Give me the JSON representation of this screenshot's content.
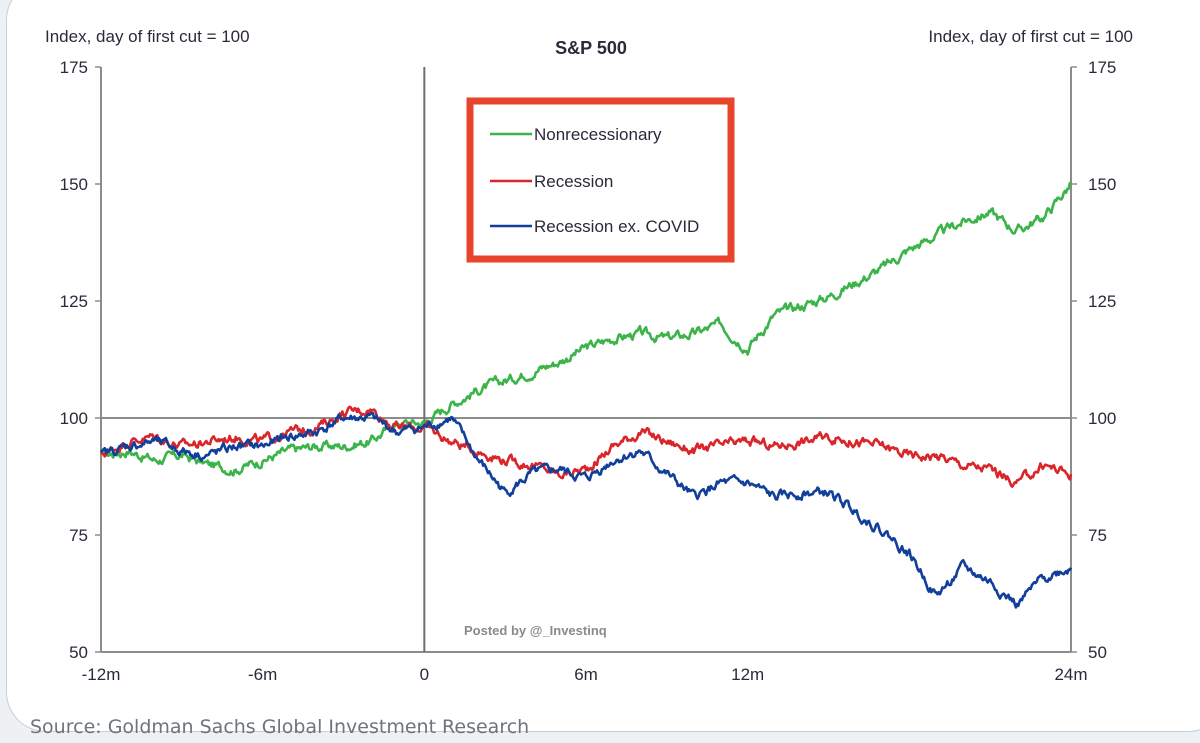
{
  "chart_data": {
    "type": "line",
    "title": "S&P 500",
    "ylabel_left": "Index, day of first cut = 100",
    "ylabel_right": "Index, day of first cut = 100",
    "xlabel": "",
    "xlim": [
      -12,
      24
    ],
    "ylim": [
      50,
      175
    ],
    "yticks": [
      50,
      75,
      100,
      125,
      150,
      175
    ],
    "ytick_labels": [
      "50",
      "75",
      "100",
      "125",
      "150",
      "175"
    ],
    "xticks": [
      -12,
      -6,
      0,
      6,
      12,
      24
    ],
    "xtick_labels": [
      "-12m",
      "-6m",
      "0",
      "6m",
      "12m",
      "24m"
    ],
    "reference_lines": {
      "horizontal": 100,
      "vertical": 0
    },
    "x": [
      -12,
      -11,
      -10,
      -9,
      -8,
      -7,
      -6,
      -5,
      -4,
      -3,
      -2,
      -1,
      0,
      1,
      2,
      3,
      4,
      5,
      6,
      7,
      8,
      9,
      10,
      11,
      12,
      13,
      14,
      15,
      16,
      17,
      18,
      19,
      20,
      21,
      22,
      23,
      24
    ],
    "series": [
      {
        "name": "Nonrecessionary",
        "color": "#3cb44a",
        "values": [
          92,
          93,
          91,
          92,
          90,
          89,
          91,
          93,
          94,
          94,
          95,
          99,
          99,
          103,
          106,
          108,
          110,
          112,
          115,
          117,
          118,
          117,
          118,
          120,
          115,
          122,
          124,
          126,
          129,
          132,
          136,
          139,
          142,
          144,
          140,
          143,
          150
        ]
      },
      {
        "name": "Recession",
        "color": "#d9262b",
        "values": [
          92,
          95,
          96,
          94,
          95,
          96,
          95,
          97,
          98,
          101,
          102,
          98,
          98,
          95,
          93,
          91,
          90,
          88,
          89,
          94,
          97,
          95,
          93,
          94,
          95,
          94,
          95,
          96,
          95,
          94,
          92,
          92,
          90,
          89,
          86,
          90,
          88
        ]
      },
      {
        "name": "Recession ex. COVID",
        "color": "#123f9a",
        "values": [
          92,
          94,
          95,
          93,
          92,
          94,
          94,
          96,
          97,
          100,
          100,
          97,
          98,
          100,
          91,
          84,
          88,
          89,
          87,
          91,
          93,
          88,
          83,
          86,
          86,
          83,
          84,
          84,
          80,
          76,
          71,
          62,
          68,
          65,
          60,
          66,
          68
        ]
      }
    ],
    "legend": {
      "position": "top-center",
      "entries": [
        "Nonrecessionary",
        "Recession",
        "Recession ex. COVID"
      ],
      "box_color": "#e8432b"
    },
    "annotation": "Posted by @_Investinq",
    "source": "Source: Goldman Sachs Global Investment Research"
  }
}
